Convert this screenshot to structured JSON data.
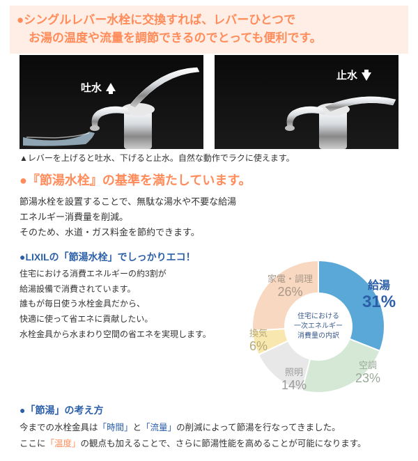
{
  "header": {
    "line1": "●シングルレバー水栓に交換すれば、レバーひとつで",
    "line2": "　お湯の温度や流量を調節できるのでとっても便利です。"
  },
  "faucets": {
    "left_label": "吐水",
    "right_label": "止水",
    "caption": "▲レバーを上げると吐水、下げると止水。自然な動作でラクに使えます。"
  },
  "section2": {
    "title": "●『節湯水栓』の基準を満たしています。",
    "desc_l1": "節湯水栓を設置することで、無駄な湯水や不要な給湯",
    "desc_l2": "エネルギー消費量を削減。",
    "desc_l3": "そのため、水道・ガス料金を節約できます。"
  },
  "eco": {
    "heading": "●LIXILの「節湯水栓」でしっかりエコ！",
    "l1": "住宅における消費エネルギーの約3割が",
    "l2": "給湯設備で消費されています。",
    "l3": "誰もが毎日使う水栓金具だから、",
    "l4": "快適に使って省エネに貢献したい。",
    "l5": "水栓金具から水まわり空間の省エネを実現します。"
  },
  "setsuyu": {
    "heading": "●「節湯」の考え方",
    "pre1": "今までの水栓金具は",
    "hl1": "「時間」",
    "mid1": "と",
    "hl2": "「流量」",
    "post1": "の削減によって節湯を行なってきました。",
    "pre2": "ここに",
    "hl3": "「温度」",
    "post2": "の観点も加えることで、さらに節湯性能を高めることが可能になります。"
  },
  "pie": {
    "center_l1": "住宅における",
    "center_l2": "一次エネルギー",
    "center_l3": "消費量の内訳",
    "slices": [
      {
        "name": "給湯",
        "pct": 31,
        "label": "給湯",
        "pct_label": "31%",
        "color": "#5aa8d8",
        "label_color": "#2b5fa8"
      },
      {
        "name": "空調",
        "pct": 23,
        "label": "空調",
        "pct_label": "23%",
        "color": "#d5e8d5",
        "label_color": "#9aa89a"
      },
      {
        "name": "照明",
        "pct": 14,
        "label": "照明",
        "pct_label": "14%",
        "color": "#e8e8e8",
        "label_color": "#9a9a9a"
      },
      {
        "name": "換気",
        "pct": 6,
        "label": "換気",
        "pct_label": "6%",
        "color": "#f8e8b0",
        "label_color": "#b8a878"
      },
      {
        "name": "家電調理",
        "pct": 26,
        "label": "家電・調理",
        "pct_label": "26%",
        "color": "#f8d8c0",
        "label_color": "#a89888"
      }
    ]
  },
  "colors": {
    "accent_orange": "#ff8c5a",
    "accent_blue": "#2b5fa8",
    "header_bg": "#ffeee5"
  }
}
